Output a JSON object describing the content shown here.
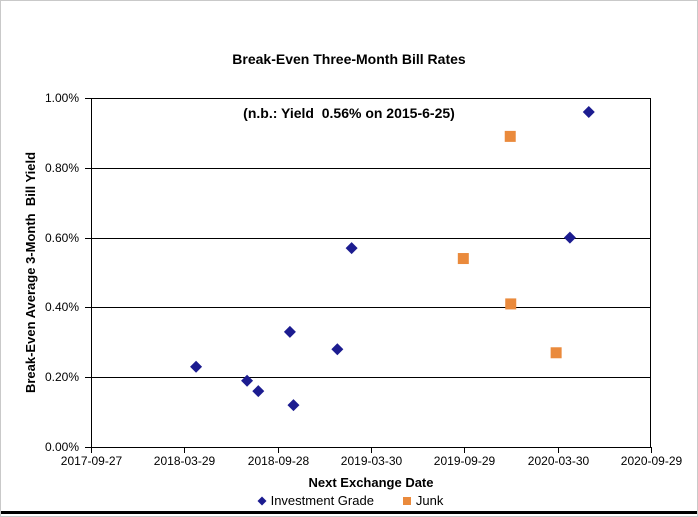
{
  "chart": {
    "title_line1": "Break-Even Three-Month Bill Rates",
    "title_line2": "(n.b.: Yield  0.56% on 2015-6-25)",
    "x_axis": {
      "label": "Next Exchange Date",
      "ticks": [
        "2017-09-27",
        "2018-03-29",
        "2018-09-28",
        "2019-03-30",
        "2019-09-29",
        "2020-03-30",
        "2020-09-29"
      ],
      "min": "2017-09-27",
      "max": "2020-09-29"
    },
    "y_axis": {
      "label": "Break-Even Average 3-Month  Bill Yield",
      "ticks": [
        "0.00%",
        "0.20%",
        "0.40%",
        "0.60%",
        "0.80%",
        "1.00%"
      ],
      "min_pct": 0.0,
      "max_pct": 1.0
    },
    "legend": [
      {
        "label": "Investment Grade",
        "marker": "diamond",
        "color": "#1C1C90"
      },
      {
        "label": "Junk",
        "marker": "square",
        "color": "#EA8A3C"
      }
    ],
    "colors": {
      "investment_grade": "#1C1C90",
      "junk": "#EA8A3C",
      "gridline": "#000000",
      "axis": "#000000",
      "frame": "#C9C9C9",
      "bottom_edge": "#000000"
    }
  },
  "chart_data": {
    "type": "scatter",
    "title": "Break-Even Three-Month Bill Rates (n.b.: Yield 0.56% on 2015-6-25)",
    "xlabel": "Next Exchange Date",
    "ylabel": "Break-Even Average 3-Month Bill Yield",
    "x_range": [
      "2017-09-27",
      "2020-09-29"
    ],
    "ylim_pct": [
      0.0,
      1.0
    ],
    "grid": true,
    "legend_position": "bottom",
    "series": [
      {
        "name": "Investment Grade",
        "marker": "diamond",
        "color": "#1C1C90",
        "points": [
          {
            "x": "2018-04-21",
            "y_pct": 0.23
          },
          {
            "x": "2018-07-30",
            "y_pct": 0.19
          },
          {
            "x": "2018-08-21",
            "y_pct": 0.16
          },
          {
            "x": "2018-10-22",
            "y_pct": 0.33
          },
          {
            "x": "2018-10-29",
            "y_pct": 0.12
          },
          {
            "x": "2019-01-23",
            "y_pct": 0.28
          },
          {
            "x": "2019-02-20",
            "y_pct": 0.57
          },
          {
            "x": "2020-04-23",
            "y_pct": 0.6
          },
          {
            "x": "2020-05-30",
            "y_pct": 0.96
          }
        ]
      },
      {
        "name": "Junk",
        "marker": "square",
        "color": "#EA8A3C",
        "points": [
          {
            "x": "2019-09-27",
            "y_pct": 0.54
          },
          {
            "x": "2019-12-28",
            "y_pct": 0.89
          },
          {
            "x": "2019-12-29",
            "y_pct": 0.41
          },
          {
            "x": "2020-03-27",
            "y_pct": 0.27
          }
        ]
      }
    ]
  }
}
